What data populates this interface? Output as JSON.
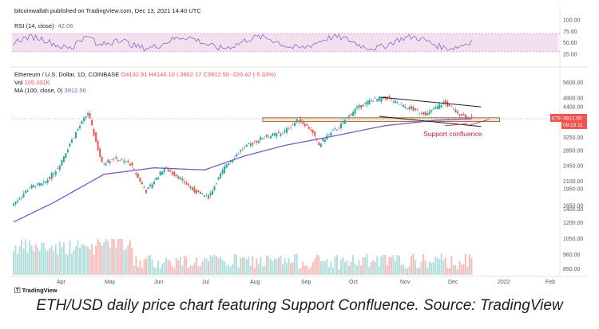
{
  "header": {
    "text": "bitcoinwallah published on TradingView.com, Dec 13, 2021 14:40 UTC"
  },
  "rsi": {
    "label": "RSI (14, close)",
    "value": "42.06",
    "ticks": [
      "100.00",
      "75.00",
      "50.00",
      "25.00"
    ]
  },
  "legend": {
    "symbol": "Ethereum / U.S. Dollar, 1D, COINBASE",
    "ohlc": "O4132.91  H4146.10  L3902.17  C3912.50  -220.42 (-5.33%)",
    "vol_label": "Vol",
    "vol_value": "105.331K",
    "ma_label": "MA (100, close, 0)",
    "ma_value": "3912.56"
  },
  "price_axis": [
    "5600.00",
    "4800.00",
    "4400.00",
    "3650.00",
    "3250.00",
    "2850.00",
    "2450.00",
    "2100.00",
    "1950.00",
    "1650.00",
    "1400.00",
    "1200.00",
    "1050.00",
    "960.00",
    "850.00"
  ],
  "time_axis": [
    "Apr",
    "May",
    "Jun",
    "Jul",
    "Aug",
    "Sep",
    "Oct",
    "Nov",
    "Dec",
    "2022",
    "Feb"
  ],
  "ticker_tag": {
    "symbol": "ETHUSD",
    "price": "3912.50",
    "countdown": "09:19:11"
  },
  "annotation": "Support confluence",
  "branding": "TradingView",
  "caption": "ETH/USD daily price chart featuring Support Confluence. Source: TradingView",
  "colors": {
    "up": "#26a69a",
    "down": "#ef5350",
    "ma": "#7e57c2",
    "rsi_band": "#f3e0ef",
    "annotation": "#c2185b"
  },
  "chart_data": {
    "type": "candlestick",
    "symbol": "ETHUSD",
    "scale": "log",
    "x": [
      "Apr",
      "May",
      "Jun",
      "Jul",
      "Aug",
      "Sep",
      "Oct",
      "Nov",
      "Dec",
      "2022",
      "Feb"
    ],
    "close_path": [
      [
        0,
        1680
      ],
      [
        8,
        1980
      ],
      [
        15,
        2050
      ],
      [
        22,
        2400
      ],
      [
        30,
        3300
      ],
      [
        37,
        4150
      ],
      [
        44,
        2500
      ],
      [
        50,
        2650
      ],
      [
        58,
        2500
      ],
      [
        66,
        1900
      ],
      [
        75,
        2400
      ],
      [
        82,
        2200
      ],
      [
        90,
        1900
      ],
      [
        97,
        1800
      ],
      [
        106,
        2500
      ],
      [
        114,
        2900
      ],
      [
        124,
        3250
      ],
      [
        134,
        3400
      ],
      [
        142,
        3900
      ],
      [
        148,
        3500
      ],
      [
        152,
        3000
      ],
      [
        156,
        3300
      ],
      [
        162,
        3600
      ],
      [
        170,
        4300
      ],
      [
        178,
        4700
      ],
      [
        186,
        4800
      ],
      [
        192,
        4500
      ],
      [
        198,
        4300
      ],
      [
        206,
        4100
      ],
      [
        214,
        4600
      ],
      [
        220,
        4200
      ],
      [
        225,
        4000
      ],
      [
        228,
        3912.5
      ]
    ],
    "ma100_path": [
      [
        0,
        1400
      ],
      [
        20,
        1700
      ],
      [
        45,
        2250
      ],
      [
        70,
        2400
      ],
      [
        95,
        2350
      ],
      [
        115,
        2700
      ],
      [
        135,
        3000
      ],
      [
        160,
        3300
      ],
      [
        185,
        3650
      ],
      [
        210,
        3850
      ],
      [
        228,
        3912.56
      ]
    ],
    "support_zone": [
      3800,
      3950
    ],
    "last": {
      "open": 4132.91,
      "high": 4146.1,
      "low": 3902.17,
      "close": 3912.5,
      "change": -220.42,
      "change_pct": -5.33
    },
    "volume_last": "105.331K",
    "ma_last": 3912.56,
    "rsi_last": 42.06
  }
}
